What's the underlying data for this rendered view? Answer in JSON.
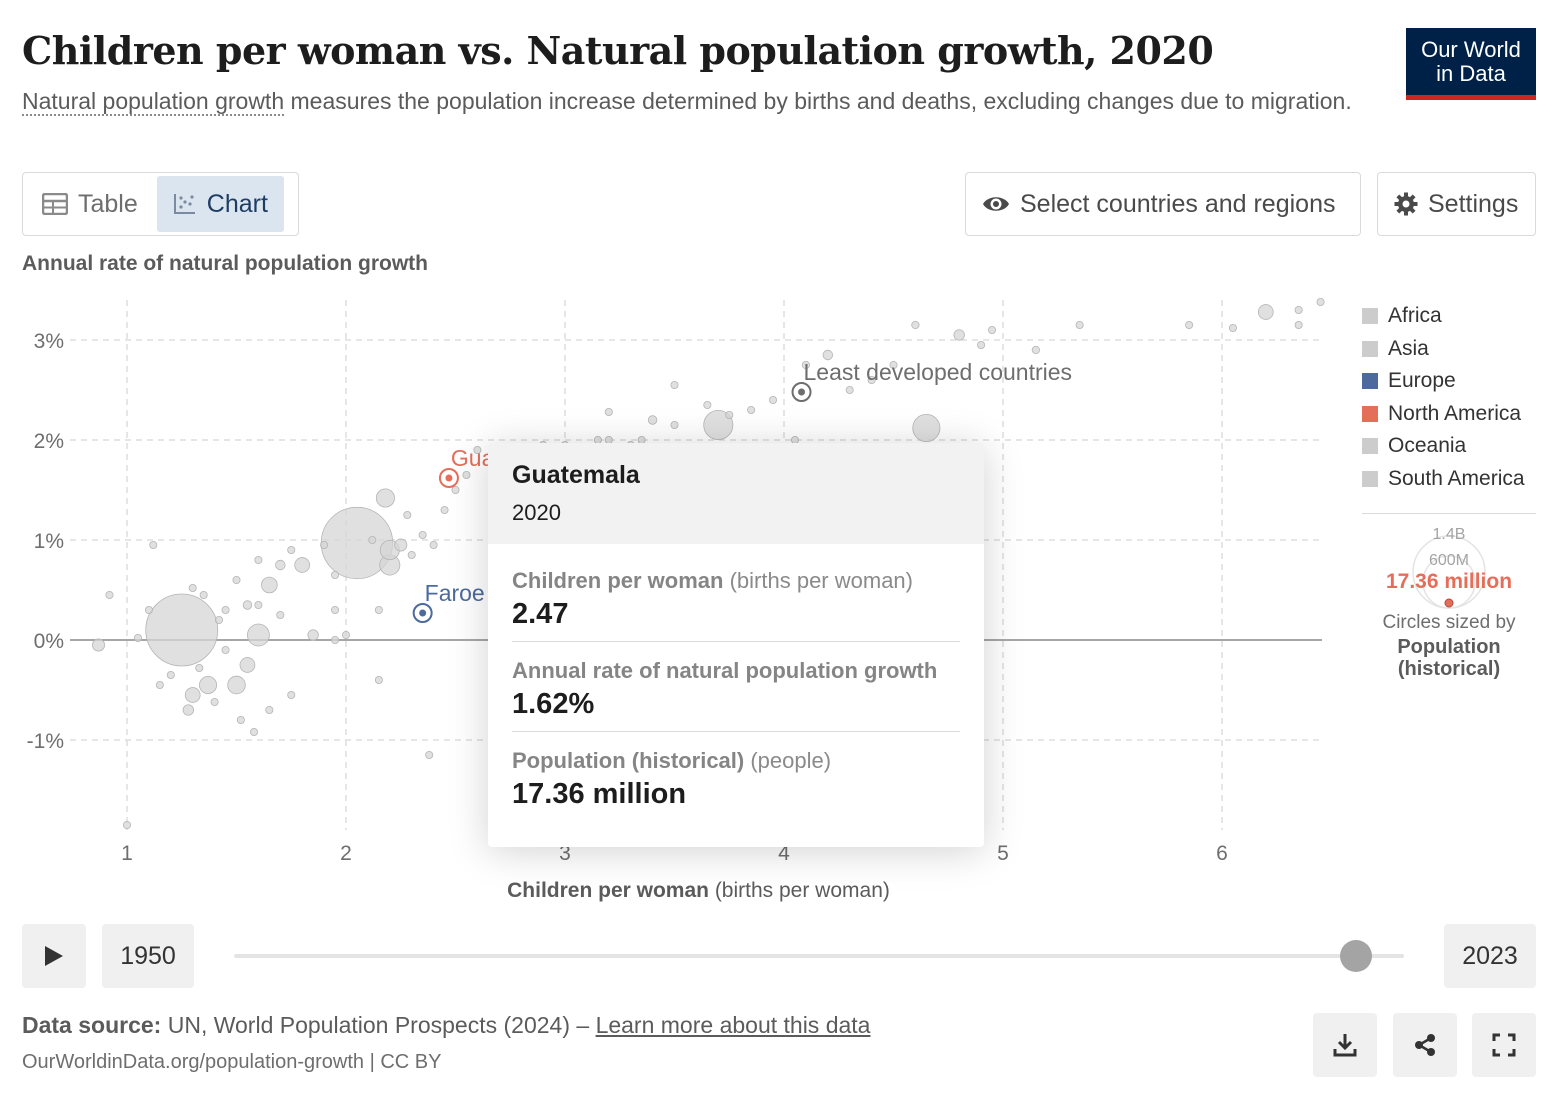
{
  "header": {
    "title": "Children per woman vs. Natural population growth, 2020",
    "subtitle_link": "Natural population growth",
    "subtitle_rest": " measures the population increase determined by births and deaths, excluding changes due to migration."
  },
  "logo": {
    "line1": "Our World",
    "line2": "in Data"
  },
  "tabs": [
    {
      "label": "Table",
      "icon": "table-icon"
    },
    {
      "label": "Chart",
      "icon": "scatter-icon",
      "active": true
    }
  ],
  "controls": {
    "select_label": "Select countries and regions",
    "settings_label": "Settings"
  },
  "legend": {
    "items": [
      {
        "label": "Africa",
        "color": "#cccccc"
      },
      {
        "label": "Asia",
        "color": "#cccccc"
      },
      {
        "label": "Europe",
        "color": "#4c6a9c"
      },
      {
        "label": "North America",
        "color": "#e56e5a"
      },
      {
        "label": "Oceania",
        "color": "#cccccc"
      },
      {
        "label": "South America",
        "color": "#cccccc"
      }
    ],
    "size": {
      "label_large": "1.4B",
      "label_mid": "600M",
      "highlight_value": "17.36 million",
      "caption1": "Circles sized by",
      "caption2": "Population",
      "caption3": "(historical)"
    }
  },
  "tooltip": {
    "name": "Guatemala",
    "year": "2020",
    "rows": [
      {
        "label": "Children per woman",
        "unit": " (births per woman)",
        "value": "2.47"
      },
      {
        "label": "Annual rate of natural population growth",
        "unit": "",
        "value": "1.62%"
      },
      {
        "label": "Population (historical)",
        "unit": " (people)",
        "value": "17.36 million"
      }
    ]
  },
  "timeline": {
    "start": "1950",
    "end": "2023",
    "current_year": 2020
  },
  "footer": {
    "source_label": "Data source:",
    "source_text": " UN, World Population Prospects (2024) – ",
    "source_link": "Learn more about this data",
    "url": "OurWorldinData.org/population-growth | CC BY"
  },
  "chart_data": {
    "type": "scatter",
    "title": "Children per woman vs. Natural population growth, 2020",
    "xlabel": "Children per woman",
    "xlabel_unit": " (births per woman)",
    "ylabel": "Annual rate of natural population growth",
    "xlim": [
      0.8,
      6.5
    ],
    "ylim": [
      -1.9,
      3.4
    ],
    "x_ticks": [
      1,
      2,
      3,
      4,
      5,
      6
    ],
    "y_ticks": [
      -1,
      0,
      1,
      2,
      3
    ],
    "y_tick_labels": [
      "-1%",
      "0%",
      "1%",
      "2%",
      "3%"
    ],
    "grid": true,
    "legend_position": "right",
    "labeled_points": [
      {
        "name": "Least developed countries",
        "x": 4.08,
        "y": 2.48,
        "color": "#6e6e6e"
      },
      {
        "name": "Guatemala",
        "x": 2.47,
        "y": 1.62,
        "color": "#e56e5a"
      },
      {
        "name": "Faroe Islands",
        "x": 2.35,
        "y": 0.27,
        "color": "#4c6a9c"
      }
    ],
    "points": [
      {
        "x": 1.25,
        "y": 0.1,
        "pop": 1400
      },
      {
        "x": 2.05,
        "y": 0.97,
        "pop": 1380
      },
      {
        "x": 1.35,
        "y": 0.45,
        "pop": 0.4
      },
      {
        "x": 0.87,
        "y": -0.05,
        "pop": 40
      },
      {
        "x": 1.05,
        "y": 0.02,
        "pop": 3
      },
      {
        "x": 1.1,
        "y": 0.3,
        "pop": 2
      },
      {
        "x": 1.15,
        "y": -0.45,
        "pop": 1
      },
      {
        "x": 1.3,
        "y": -0.55,
        "pop": 60
      },
      {
        "x": 1.28,
        "y": -0.7,
        "pop": 30
      },
      {
        "x": 1.37,
        "y": -0.45,
        "pop": 80
      },
      {
        "x": 1.5,
        "y": -0.45,
        "pop": 84
      },
      {
        "x": 1.55,
        "y": -0.25,
        "pop": 60
      },
      {
        "x": 1.6,
        "y": 0.05,
        "pop": 130
      },
      {
        "x": 1.65,
        "y": 0.55,
        "pop": 67
      },
      {
        "x": 1.8,
        "y": 0.75,
        "pop": 60
      },
      {
        "x": 1.7,
        "y": 0.75,
        "pop": 25
      },
      {
        "x": 1.55,
        "y": 0.35,
        "pop": 20
      },
      {
        "x": 1.45,
        "y": 0.3,
        "pop": 10
      },
      {
        "x": 1.85,
        "y": 0.05,
        "pop": 30
      },
      {
        "x": 1.95,
        "y": 0.3,
        "pop": 5
      },
      {
        "x": 2.0,
        "y": 0.05,
        "pop": 4
      },
      {
        "x": 2.18,
        "y": 1.42,
        "pop": 90
      },
      {
        "x": 2.2,
        "y": 0.9,
        "pop": 100
      },
      {
        "x": 2.25,
        "y": 0.95,
        "pop": 40
      },
      {
        "x": 2.2,
        "y": 0.75,
        "pop": 110
      },
      {
        "x": 2.12,
        "y": 1.0,
        "pop": 10
      },
      {
        "x": 2.28,
        "y": 1.25,
        "pop": 6
      },
      {
        "x": 2.3,
        "y": 0.85,
        "pop": 8
      },
      {
        "x": 2.35,
        "y": 1.05,
        "pop": 12
      },
      {
        "x": 2.4,
        "y": 0.95,
        "pop": 4
      },
      {
        "x": 1.95,
        "y": 0.65,
        "pop": 7
      },
      {
        "x": 1.9,
        "y": 0.95,
        "pop": 3
      },
      {
        "x": 1.75,
        "y": 0.9,
        "pop": 5
      },
      {
        "x": 1.6,
        "y": 0.8,
        "pop": 6
      },
      {
        "x": 1.5,
        "y": 0.6,
        "pop": 3
      },
      {
        "x": 1.42,
        "y": 0.2,
        "pop": 5
      },
      {
        "x": 1.45,
        "y": -0.1,
        "pop": 4
      },
      {
        "x": 1.52,
        "y": -0.8,
        "pop": 2
      },
      {
        "x": 1.58,
        "y": -0.92,
        "pop": 1
      },
      {
        "x": 1.4,
        "y": -0.62,
        "pop": 3
      },
      {
        "x": 1.33,
        "y": -0.28,
        "pop": 9
      },
      {
        "x": 1.2,
        "y": -0.35,
        "pop": 2
      },
      {
        "x": 1.0,
        "y": -1.85,
        "pop": 0.5
      },
      {
        "x": 0.92,
        "y": 0.45,
        "pop": 1
      },
      {
        "x": 1.12,
        "y": 0.95,
        "pop": 1
      },
      {
        "x": 1.3,
        "y": 0.52,
        "pop": 1
      },
      {
        "x": 1.6,
        "y": 0.35,
        "pop": 2
      },
      {
        "x": 1.7,
        "y": 0.25,
        "pop": 2
      },
      {
        "x": 1.75,
        "y": -0.55,
        "pop": 1
      },
      {
        "x": 1.65,
        "y": -0.7,
        "pop": 2
      },
      {
        "x": 1.95,
        "y": 0.0,
        "pop": 2
      },
      {
        "x": 2.15,
        "y": 0.3,
        "pop": 1
      },
      {
        "x": 2.15,
        "y": -0.4,
        "pop": 0.8
      },
      {
        "x": 2.38,
        "y": -1.15,
        "pop": 1
      },
      {
        "x": 2.45,
        "y": 1.3,
        "pop": 3
      },
      {
        "x": 2.5,
        "y": 1.5,
        "pop": 2
      },
      {
        "x": 2.55,
        "y": 1.65,
        "pop": 5
      },
      {
        "x": 2.7,
        "y": 1.75,
        "pop": 4
      },
      {
        "x": 2.75,
        "y": 1.85,
        "pop": 3
      },
      {
        "x": 2.85,
        "y": 1.9,
        "pop": 8
      },
      {
        "x": 2.9,
        "y": 1.95,
        "pop": 6
      },
      {
        "x": 3.0,
        "y": 1.95,
        "pop": 10
      },
      {
        "x": 3.2,
        "y": 2.0,
        "pop": 4
      },
      {
        "x": 3.35,
        "y": 2.0,
        "pop": 5
      },
      {
        "x": 3.4,
        "y": 2.2,
        "pop": 20
      },
      {
        "x": 3.5,
        "y": 2.15,
        "pop": 3
      },
      {
        "x": 3.5,
        "y": 2.55,
        "pop": 1
      },
      {
        "x": 3.65,
        "y": 2.35,
        "pop": 2
      },
      {
        "x": 3.7,
        "y": 2.15,
        "pop": 230
      },
      {
        "x": 3.75,
        "y": 2.25,
        "pop": 5
      },
      {
        "x": 3.85,
        "y": 2.3,
        "pop": 3
      },
      {
        "x": 3.95,
        "y": 2.4,
        "pop": 4
      },
      {
        "x": 4.05,
        "y": 2.0,
        "pop": 2
      },
      {
        "x": 4.1,
        "y": 2.75,
        "pop": 15
      },
      {
        "x": 4.2,
        "y": 2.85,
        "pop": 25
      },
      {
        "x": 4.3,
        "y": 2.5,
        "pop": 8
      },
      {
        "x": 4.4,
        "y": 2.6,
        "pop": 6
      },
      {
        "x": 4.5,
        "y": 2.75,
        "pop": 10
      },
      {
        "x": 4.65,
        "y": 2.12,
        "pop": 200
      },
      {
        "x": 4.6,
        "y": 3.15,
        "pop": 15
      },
      {
        "x": 4.8,
        "y": 3.05,
        "pop": 30
      },
      {
        "x": 4.9,
        "y": 2.95,
        "pop": 12
      },
      {
        "x": 4.95,
        "y": 3.1,
        "pop": 10
      },
      {
        "x": 5.15,
        "y": 2.9,
        "pop": 15
      },
      {
        "x": 5.35,
        "y": 3.15,
        "pop": 10
      },
      {
        "x": 5.85,
        "y": 3.15,
        "pop": 8
      },
      {
        "x": 6.2,
        "y": 3.28,
        "pop": 60
      },
      {
        "x": 6.35,
        "y": 3.3,
        "pop": 5
      },
      {
        "x": 6.45,
        "y": 3.38,
        "pop": 5
      },
      {
        "x": 6.05,
        "y": 3.12,
        "pop": 5
      },
      {
        "x": 6.35,
        "y": 3.15,
        "pop": 3
      },
      {
        "x": 3.2,
        "y": 2.28,
        "pop": 2
      },
      {
        "x": 3.05,
        "y": 1.85,
        "pop": 3
      },
      {
        "x": 3.15,
        "y": 2.0,
        "pop": 5
      },
      {
        "x": 3.3,
        "y": 1.95,
        "pop": 2
      },
      {
        "x": 2.6,
        "y": 1.9,
        "pop": 2
      }
    ]
  }
}
